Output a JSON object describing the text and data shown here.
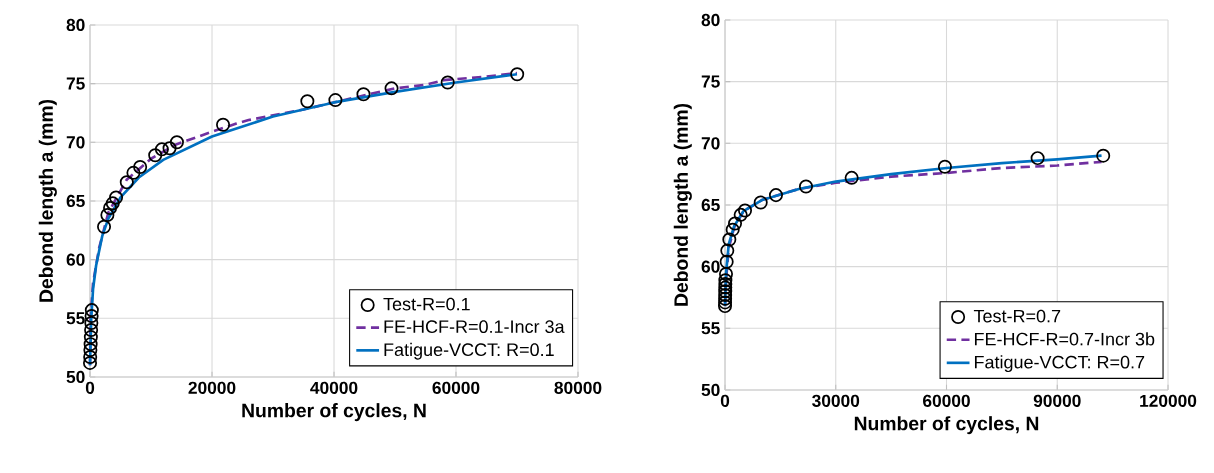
{
  "chart_data": [
    {
      "type": "line",
      "xlabel": "Number of cycles, N",
      "ylabel": "Debond length a (mm)",
      "xlim": [
        0,
        80000
      ],
      "ylim": [
        50,
        80
      ],
      "xticks": [
        0,
        20000,
        40000,
        60000,
        80000
      ],
      "yticks": [
        50,
        55,
        60,
        65,
        70,
        75,
        80
      ],
      "grid": true,
      "legend": "bottom right",
      "series": [
        {
          "name": "Test-R=0.1",
          "type": "scatter",
          "marker": "circle",
          "color": "#000000",
          "x": [
            0,
            30,
            60,
            100,
            140,
            180,
            220,
            260,
            300,
            2300,
            2850,
            3290,
            3730,
            4270,
            6030,
            7120,
            8220,
            10690,
            11780,
            13040,
            14250,
            21810,
            35630,
            40230,
            44830,
            49430,
            58640,
            70030
          ],
          "values": [
            51.2,
            51.7,
            52.3,
            52.8,
            53.4,
            54.0,
            54.6,
            55.2,
            55.7,
            62.8,
            63.8,
            64.4,
            64.8,
            65.3,
            66.6,
            67.4,
            67.9,
            68.9,
            69.4,
            69.5,
            70.0,
            71.5,
            73.5,
            73.6,
            74.1,
            74.6,
            75.1,
            75.8
          ]
        },
        {
          "name": "FE-HCF-R=0.1-Incr 3a",
          "line_style": "dashed",
          "color": "#7030a0",
          "x": [
            0,
            100,
            500,
            1500,
            3000,
            6000,
            10000,
            14000,
            20000,
            24000,
            26000,
            35000,
            45000,
            50000,
            55000,
            58000,
            65000,
            70000
          ],
          "values": [
            51,
            55,
            58,
            61,
            64,
            66.8,
            68.6,
            69.8,
            70.9,
            71.6,
            71.9,
            72.8,
            74,
            74.6,
            74.9,
            75.3,
            75.6,
            75.9
          ]
        },
        {
          "name": "Fatigue-VCCT: R=0.1",
          "line_style": "solid",
          "color": "#0070c0",
          "x": [
            0,
            200,
            500,
            1000,
            2000,
            3000,
            5000,
            8000,
            12000,
            20000,
            30000,
            40000,
            50000,
            60000,
            70000
          ],
          "values": [
            51,
            55,
            57.5,
            59.5,
            62,
            63.5,
            65.3,
            67,
            68.5,
            70.5,
            72.2,
            73.4,
            74.3,
            75.1,
            75.8
          ]
        }
      ]
    },
    {
      "type": "line",
      "xlabel": "Number of cycles, N",
      "ylabel": "Debond length a (mm)",
      "xlim": [
        0,
        120000
      ],
      "ylim": [
        50,
        80
      ],
      "xticks": [
        0,
        30000,
        60000,
        90000,
        120000
      ],
      "yticks": [
        50,
        55,
        60,
        65,
        70,
        75,
        80
      ],
      "grid": true,
      "legend": "bottom right",
      "series": [
        {
          "name": "Test-R=0.7",
          "type": "scatter",
          "marker": "circle",
          "color": "#000000",
          "x": [
            0,
            15,
            30,
            45,
            60,
            75,
            90,
            100,
            270,
            450,
            620,
            1170,
            2080,
            2710,
            4250,
            5420,
            9670,
            13810,
            21940,
            34310,
            59580,
            84680,
            102450
          ],
          "values": [
            56.8,
            57.1,
            57.4,
            57.7,
            58.0,
            58.3,
            58.6,
            58.9,
            59.4,
            60.4,
            61.3,
            62.2,
            63.0,
            63.5,
            64.2,
            64.55,
            65.2,
            65.8,
            66.5,
            67.2,
            68.1,
            68.8,
            69.0
          ]
        },
        {
          "name": "FE-HCF-R=0.7-Incr 3b",
          "line_style": "dashed",
          "color": "#7030a0",
          "x": [
            0,
            300,
            1000,
            2500,
            5000,
            10000,
            20000,
            30000,
            45000,
            60000,
            75000,
            90000,
            102000
          ],
          "values": [
            56.8,
            59,
            61.5,
            63.2,
            64.5,
            65.4,
            66.3,
            66.8,
            67.3,
            67.6,
            68,
            68.2,
            68.5
          ]
        },
        {
          "name": "Fatigue-VCCT: R=0.7",
          "line_style": "solid",
          "color": "#0070c0",
          "x": [
            0,
            300,
            1000,
            2500,
            5000,
            10000,
            20000,
            30000,
            45000,
            60000,
            75000,
            90000,
            102000
          ],
          "values": [
            56.8,
            59.5,
            61.8,
            63.3,
            64.5,
            65.4,
            66.3,
            66.9,
            67.5,
            68,
            68.4,
            68.7,
            69.0
          ]
        }
      ]
    }
  ]
}
